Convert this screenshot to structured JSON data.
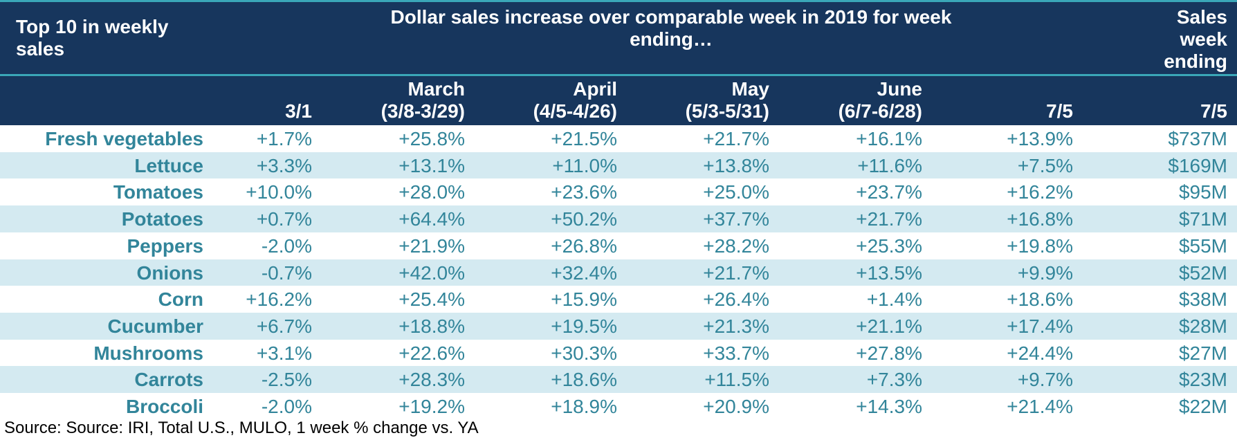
{
  "header": {
    "top_left": "Top 10 in weekly sales",
    "middle": "Dollar sales increase over comparable week in 2019 for week ending…",
    "right": "Sales week ending"
  },
  "columns": [
    {
      "line1": "",
      "line2": "3/1"
    },
    {
      "line1": "March",
      "line2": "(3/8-3/29)"
    },
    {
      "line1": "April",
      "line2": "(4/5-4/26)"
    },
    {
      "line1": "May",
      "line2": "(5/3-5/31)"
    },
    {
      "line1": "June",
      "line2": "(6/7-6/28)"
    },
    {
      "line1": "",
      "line2": "7/5"
    },
    {
      "line1": "",
      "line2": "7/5"
    }
  ],
  "rows": [
    {
      "label": "Fresh vegetables",
      "values": [
        "+1.7%",
        "+25.8%",
        "+21.5%",
        "+21.7%",
        "+16.1%",
        "+13.9%",
        "$737M"
      ]
    },
    {
      "label": "Lettuce",
      "values": [
        "+3.3%",
        "+13.1%",
        "+11.0%",
        "+13.8%",
        "+11.6%",
        "+7.5%",
        "$169M"
      ]
    },
    {
      "label": "Tomatoes",
      "values": [
        "+10.0%",
        "+28.0%",
        "+23.6%",
        "+25.0%",
        "+23.7%",
        "+16.2%",
        "$95M"
      ]
    },
    {
      "label": "Potatoes",
      "values": [
        "+0.7%",
        "+64.4%",
        "+50.2%",
        "+37.7%",
        "+21.7%",
        "+16.8%",
        "$71M"
      ]
    },
    {
      "label": "Peppers",
      "values": [
        "-2.0%",
        "+21.9%",
        "+26.8%",
        "+28.2%",
        "+25.3%",
        "+19.8%",
        "$55M"
      ]
    },
    {
      "label": "Onions",
      "values": [
        "-0.7%",
        "+42.0%",
        "+32.4%",
        "+21.7%",
        "+13.5%",
        "+9.9%",
        "$52M"
      ]
    },
    {
      "label": "Corn",
      "values": [
        "+16.2%",
        "+25.4%",
        "+15.9%",
        "+26.4%",
        "+1.4%",
        "+18.6%",
        "$38M"
      ]
    },
    {
      "label": "Cucumber",
      "values": [
        "+6.7%",
        "+18.8%",
        "+19.5%",
        "+21.3%",
        "+21.1%",
        "+17.4%",
        "$28M"
      ]
    },
    {
      "label": "Mushrooms",
      "values": [
        "+3.1%",
        "+22.6%",
        "+30.3%",
        "+33.7%",
        "+27.8%",
        "+24.4%",
        "$27M"
      ]
    },
    {
      "label": "Carrots",
      "values": [
        "-2.5%",
        "+28.3%",
        "+18.6%",
        "+11.5%",
        "+7.3%",
        "+9.7%",
        "$23M"
      ]
    },
    {
      "label": "Broccoli",
      "values": [
        "-2.0%",
        "+19.2%",
        "+18.9%",
        "+20.9%",
        "+14.3%",
        "+21.4%",
        "$22M"
      ]
    }
  ],
  "source": "Source: Source: IRI, Total U.S., MULO, 1 week % change vs. YA",
  "colors": {
    "header_bg": "#17365d",
    "accent": "#3aa7b8",
    "text": "#32859a",
    "alt_row": "#d4eaf1"
  }
}
